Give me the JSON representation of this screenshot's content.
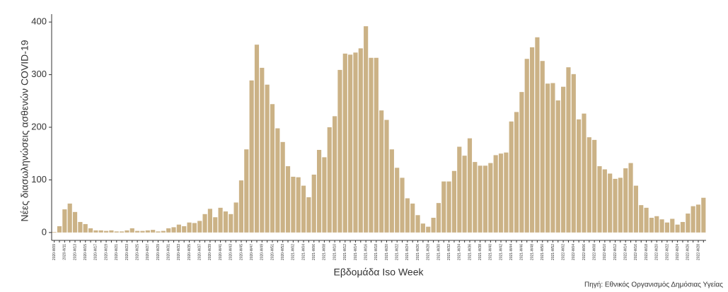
{
  "chart_data": {
    "type": "bar",
    "xlabel": "Εβδομάδα Iso Week",
    "ylabel": "Νέες διασωληνώσεις ασθενών COVID-19",
    "caption": "Πηγή: Εθνικός Οργανισμός Δημόσιας Υγείας",
    "color": "#cbb286",
    "ylim": [
      -15,
      415
    ],
    "yticks": [
      0,
      100,
      200,
      300,
      400
    ],
    "grid": false,
    "categories": [
      "2020-W09",
      null,
      "2020-W11",
      null,
      "2020-W13",
      null,
      "2020-W15",
      null,
      "2020-W17",
      null,
      "2020-W19",
      null,
      "2020-W21",
      null,
      "2020-W23",
      null,
      "2020-W25",
      null,
      "2020-W27",
      null,
      "2020-W29",
      null,
      "2020-W31",
      null,
      "2020-W33",
      null,
      "2020-W35",
      null,
      "2020-W37",
      null,
      "2020-W39",
      null,
      "2020-W41",
      null,
      "2020-W43",
      null,
      "2020-W45",
      null,
      "2020-W47",
      null,
      "2020-W49",
      null,
      "2020-W51",
      null,
      "2020-W53",
      null,
      "2021-W02",
      null,
      "2021-W04",
      null,
      "2021-W06",
      null,
      "2021-W08",
      null,
      "2021-W10",
      null,
      "2021-W12",
      null,
      "2021-W14",
      null,
      "2021-W16",
      null,
      "2021-W18",
      null,
      "2021-W20",
      null,
      "2021-W22",
      null,
      "2021-W24",
      null,
      "2021-W26",
      null,
      "2021-W28",
      null,
      "2021-W30",
      null,
      "2021-W32",
      null,
      "2021-W34",
      null,
      "2021-W36",
      null,
      "2021-W38",
      null,
      "2021-W40",
      null,
      "2021-W42",
      null,
      "2021-W44",
      null,
      "2021-W46",
      null,
      "2021-W48",
      null,
      "2021-W50",
      null,
      "2021-W52",
      null,
      "2022-W02",
      null,
      "2022-W04",
      null,
      "2022-W06",
      null,
      "2022-W08",
      null,
      "2022-W10",
      null,
      "2022-W12",
      null,
      "2022-W14",
      null,
      "2022-W16",
      null,
      "2022-W18",
      null,
      "2022-W20",
      null,
      "2022-W22",
      null,
      "2022-W24",
      null,
      "2022-W26",
      null,
      "2022-W28",
      null
    ],
    "values": [
      1,
      12,
      44,
      55,
      39,
      20,
      16,
      8,
      4,
      4,
      3,
      4,
      2,
      2,
      4,
      8,
      3,
      3,
      4,
      5,
      2,
      3,
      8,
      10,
      15,
      12,
      19,
      18,
      22,
      35,
      45,
      29,
      47,
      40,
      35,
      57,
      99,
      158,
      289,
      357,
      313,
      281,
      244,
      198,
      172,
      126,
      106,
      105,
      89,
      67,
      110,
      157,
      143,
      200,
      221,
      309,
      340,
      338,
      342,
      350,
      392,
      332,
      332,
      232,
      214,
      158,
      123,
      104,
      65,
      55,
      33,
      17,
      11,
      28,
      56,
      97,
      97,
      117,
      163,
      146,
      179,
      134,
      127,
      127,
      132,
      147,
      150,
      152,
      211,
      229,
      267,
      330,
      352,
      371,
      326,
      283,
      284,
      251,
      277,
      314,
      301,
      215,
      226,
      181,
      176,
      126,
      120,
      112,
      102,
      104,
      122,
      132,
      89,
      52,
      47,
      28,
      31,
      25,
      19,
      26,
      15,
      20,
      36,
      50,
      53,
      66
    ]
  }
}
